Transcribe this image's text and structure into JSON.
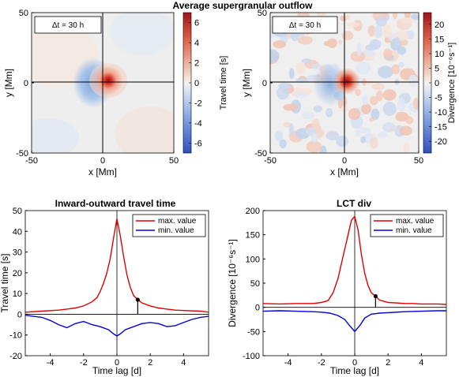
{
  "figure": {
    "suptitle": "Average supergranular outflow"
  },
  "chart_data": [
    {
      "type": "heatmap",
      "annotation": "Δt = 30 h",
      "xlabel": "x [Mm]",
      "ylabel": "y [Mm]",
      "xlim": [
        -50,
        50
      ],
      "ylim": [
        -50,
        50
      ],
      "xticks": [
        -50,
        0,
        50
      ],
      "yticks": [
        -50,
        0,
        50
      ],
      "crosshair": true,
      "colorbar": {
        "label": "Travel time [s]",
        "range": [
          -7,
          7
        ],
        "ticks": [
          -6,
          -4,
          -2,
          0,
          2,
          4,
          6
        ],
        "colormap": "blue-white-red"
      },
      "features": [
        {
          "kind": "peak",
          "x": 3,
          "y": 0,
          "value": 7
        },
        {
          "kind": "trough-ring",
          "x": -6,
          "y": 0,
          "value": -3
        }
      ]
    },
    {
      "type": "heatmap",
      "annotation": "Δt = 30 h",
      "xlabel": "x [Mm]",
      "ylabel": "y [Mm]",
      "xlim": [
        -50,
        50
      ],
      "ylim": [
        -50,
        50
      ],
      "xticks": [
        -50,
        0,
        50
      ],
      "yticks": [
        -50,
        0,
        50
      ],
      "crosshair": true,
      "colorbar": {
        "label": "Divergence [10⁻⁶s⁻¹]",
        "range": [
          -24,
          24
        ],
        "ticks": [
          -20,
          -15,
          -10,
          -5,
          0,
          5,
          10,
          15,
          20
        ],
        "colormap": "blue-white-red"
      },
      "features": [
        {
          "kind": "peak",
          "x": 3,
          "y": 0,
          "value": 24
        },
        {
          "kind": "trough-ring",
          "x": -6,
          "y": 0,
          "value": -8
        }
      ]
    },
    {
      "type": "line",
      "title": "Inward-outward travel time",
      "xlabel": "Time lag [d]",
      "ylabel": "Travel time [s]",
      "xlim": [
        -5.5,
        5.5
      ],
      "ylim": [
        -20,
        50
      ],
      "xticks": [
        -4,
        -2,
        0,
        2,
        4
      ],
      "yticks": [
        -20,
        -10,
        0,
        10,
        20,
        30,
        40,
        50
      ],
      "legend": "top-right",
      "marker": {
        "x": 1.25,
        "y": 7
      },
      "series": [
        {
          "name": "max. value",
          "color": "#e00000",
          "x": [
            -5.5,
            -4.5,
            -3.5,
            -3,
            -2.5,
            -2,
            -1.5,
            -1.2,
            -1,
            -0.8,
            -0.6,
            -0.4,
            -0.2,
            0,
            0.2,
            0.4,
            0.6,
            0.8,
            1,
            1.25,
            1.5,
            2,
            2.5,
            3,
            3.5,
            4,
            5,
            5.5
          ],
          "y": [
            1,
            1.5,
            2,
            2.5,
            3,
            4,
            6,
            8,
            11,
            15,
            20,
            27,
            37,
            46,
            38,
            28,
            19,
            13,
            9,
            7,
            5.5,
            4,
            3,
            2.5,
            2,
            1.8,
            1.5,
            1
          ]
        },
        {
          "name": "min. value",
          "color": "#0000e0",
          "x": [
            -5.5,
            -4.5,
            -4,
            -3.5,
            -3,
            -2.5,
            -2,
            -1.5,
            -1,
            -0.5,
            -0.2,
            0,
            0.2,
            0.5,
            1,
            1.5,
            2,
            2.5,
            3,
            3.5,
            4,
            4.5,
            5,
            5.5
          ],
          "y": [
            -0.5,
            -1.5,
            -3,
            -5,
            -6.5,
            -4.5,
            -3.5,
            -5,
            -6,
            -7.5,
            -9.5,
            -10.5,
            -9.5,
            -7.5,
            -6,
            -4.5,
            -4,
            -4.5,
            -6,
            -5.5,
            -4,
            -2.5,
            -1.5,
            -1
          ]
        }
      ]
    },
    {
      "type": "line",
      "title": "LCT div",
      "xlabel": "Time lag [d]",
      "ylabel": "Divergence [10⁻⁶s⁻¹]",
      "xlim": [
        -5.5,
        5.5
      ],
      "ylim": [
        -100,
        200
      ],
      "xticks": [
        -4,
        -2,
        0,
        2,
        4
      ],
      "yticks": [
        -100,
        -50,
        0,
        50,
        100,
        150,
        200
      ],
      "legend": "top-right",
      "marker": {
        "x": 1.25,
        "y": 23
      },
      "series": [
        {
          "name": "max. value",
          "color": "#e00000",
          "x": [
            -5.5,
            -4.5,
            -3.5,
            -2.5,
            -2,
            -1.6,
            -1.3,
            -1,
            -0.8,
            -0.6,
            -0.4,
            -0.2,
            0,
            0.2,
            0.4,
            0.6,
            0.8,
            1,
            1.25,
            1.5,
            2,
            2.5,
            3,
            3.5,
            4,
            5,
            5.5
          ],
          "y": [
            8,
            7,
            8,
            8,
            10,
            14,
            30,
            60,
            90,
            120,
            150,
            180,
            188,
            160,
            110,
            70,
            45,
            30,
            23,
            15,
            10,
            9,
            8,
            8,
            7,
            7,
            6
          ]
        },
        {
          "name": "min. value",
          "color": "#0000e0",
          "x": [
            -5.5,
            -4.5,
            -3.5,
            -2.5,
            -2,
            -1.5,
            -1,
            -0.6,
            -0.3,
            0,
            0.3,
            0.6,
            1,
            1.5,
            2,
            3,
            4,
            5,
            5.5
          ],
          "y": [
            -8,
            -7,
            -8,
            -9,
            -10,
            -12,
            -17,
            -25,
            -38,
            -50,
            -38,
            -22,
            -14,
            -12,
            -11,
            -9,
            -8,
            -7,
            -7
          ]
        }
      ]
    }
  ]
}
